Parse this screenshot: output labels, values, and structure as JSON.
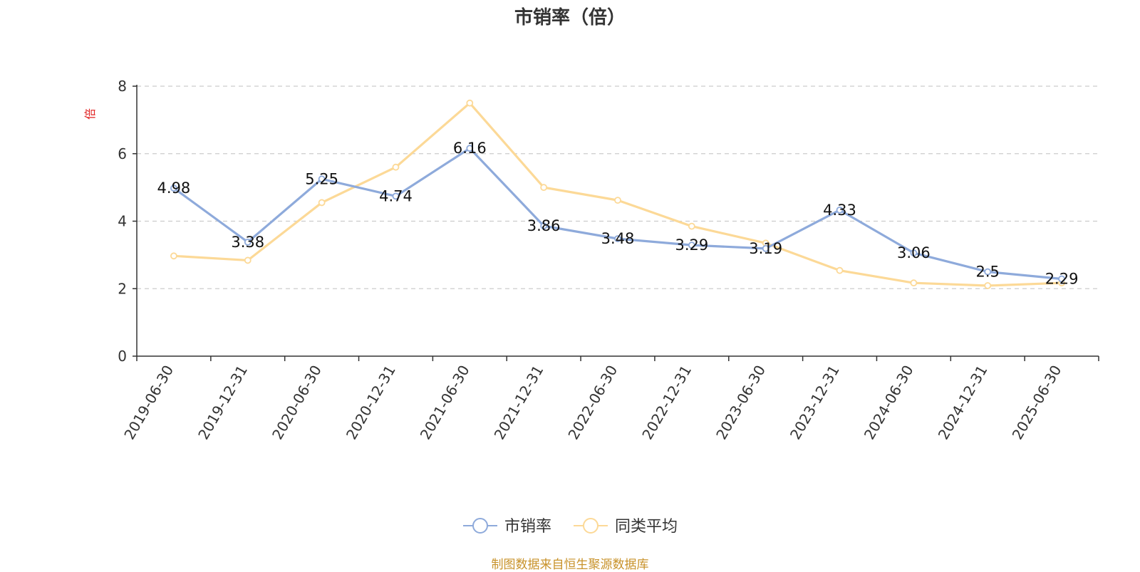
{
  "chart_data": {
    "type": "line",
    "title": "市销率（倍）",
    "ylabel": "倍",
    "xlabel": "",
    "ylim": [
      0,
      8
    ],
    "yticks": [
      0,
      2,
      4,
      6,
      8
    ],
    "grid": true,
    "legend_position": "bottom",
    "categories": [
      "2019-06-30",
      "2019-12-31",
      "2020-06-30",
      "2020-12-31",
      "2021-06-30",
      "2021-12-31",
      "2022-06-30",
      "2022-12-31",
      "2023-06-30",
      "2023-12-31",
      "2024-06-30",
      "2024-12-31",
      "2025-06-30"
    ],
    "series": [
      {
        "name": "市销率",
        "color": "#8eaadb",
        "values": [
          4.98,
          3.38,
          5.25,
          4.74,
          6.16,
          3.86,
          3.48,
          3.29,
          3.19,
          4.33,
          3.06,
          2.5,
          2.29
        ],
        "labels": [
          "4.98",
          "3.38",
          "5.25",
          "4.74",
          "6.16",
          "3.86",
          "3.48",
          "3.29",
          "3.19",
          "4.33",
          "3.06",
          "2.5",
          "2.29"
        ]
      },
      {
        "name": "同类平均",
        "color": "#fcd997",
        "values": [
          2.97,
          2.84,
          4.55,
          5.6,
          7.5,
          5.0,
          4.62,
          3.85,
          3.35,
          2.54,
          2.17,
          2.09,
          2.17
        ]
      }
    ]
  },
  "source_note": "制图数据来自恒生聚源数据库"
}
